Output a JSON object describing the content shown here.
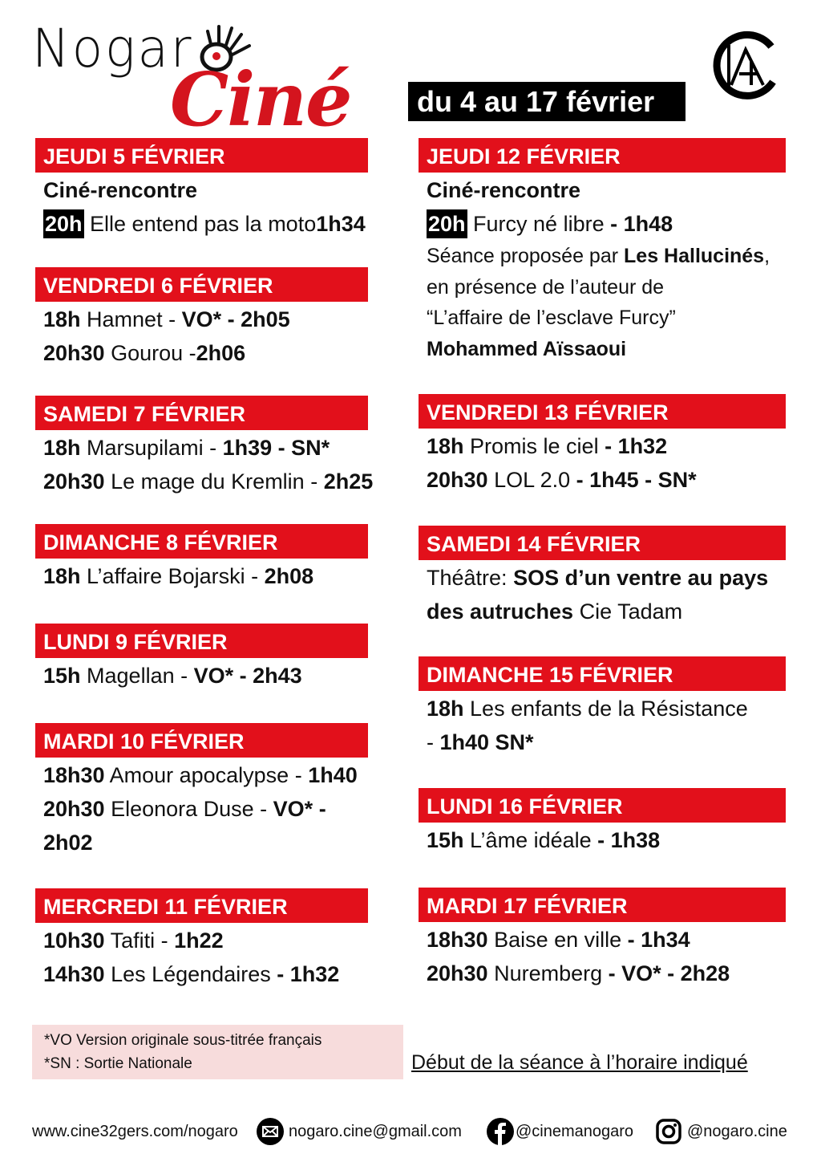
{
  "header": {
    "logo_text_1": "Nogaro",
    "logo_text_2": "Ciné",
    "partner_logo": "CA",
    "period": "du 4 au 17 février"
  },
  "colors": {
    "accent": "#e2101b",
    "legend_bg": "#f7dcdc"
  },
  "left": [
    {
      "header": "JEUDI 5 FÉVRIER",
      "lines": [
        [
          {
            "t": "Ciné-rencontre",
            "s": "b"
          }
        ],
        [
          {
            "t": "20h",
            "s": "badge"
          },
          {
            "t": " Elle entend pas la moto"
          },
          {
            "t": "1h34",
            "s": "b"
          }
        ]
      ]
    },
    {
      "header": "VENDREDI 6 FÉVRIER",
      "lines": [
        [
          {
            "t": "18h",
            "s": "b"
          },
          {
            "t": " Hamnet - "
          },
          {
            "t": "VO* - 2h05",
            "s": "b"
          }
        ],
        [
          {
            "t": "20h30",
            "s": "b"
          },
          {
            "t": " Gourou -"
          },
          {
            "t": "2h06",
            "s": "b"
          }
        ]
      ]
    },
    {
      "header": "SAMEDI 7 FÉVRIER",
      "lines": [
        [
          {
            "t": "18h",
            "s": "b"
          },
          {
            "t": " Marsupilami - "
          },
          {
            "t": "1h39 - SN*",
            "s": "b"
          }
        ],
        [
          {
            "t": "20h30",
            "s": "b"
          },
          {
            "t": " Le mage du Kremlin - "
          },
          {
            "t": "2h25",
            "s": "b"
          }
        ]
      ]
    },
    {
      "header": "DIMANCHE 8 FÉVRIER",
      "lines": [
        [
          {
            "t": "18h",
            "s": "b"
          },
          {
            "t": " L’affaire Bojarski - "
          },
          {
            "t": "2h08",
            "s": "b"
          }
        ]
      ]
    },
    {
      "header": "LUNDI 9 FÉVRIER",
      "lines": [
        [
          {
            "t": "15h",
            "s": "b"
          },
          {
            "t": " Magellan - "
          },
          {
            "t": "VO* - 2h43",
            "s": "b"
          }
        ]
      ]
    },
    {
      "header": "MARDI 10 FÉVRIER",
      "lines": [
        [
          {
            "t": "18h30",
            "s": "b"
          },
          {
            "t": " Amour apocalypse - "
          },
          {
            "t": "1h40",
            "s": "b"
          }
        ],
        [
          {
            "t": "20h30",
            "s": "b"
          },
          {
            "t": " Eleonora Duse - "
          },
          {
            "t": "VO* -",
            "s": "b"
          }
        ],
        [
          {
            "t": "2h02",
            "s": "b"
          }
        ]
      ]
    },
    {
      "header": "MERCREDI 11 FÉVRIER",
      "lines": [
        [
          {
            "t": "10h30",
            "s": "b"
          },
          {
            "t": " Tafiti - "
          },
          {
            "t": "1h22",
            "s": "b"
          }
        ],
        [
          {
            "t": "14h30",
            "s": "b"
          },
          {
            "t": " Les Légendaires "
          },
          {
            "t": "- 1h32",
            "s": "b"
          }
        ]
      ]
    }
  ],
  "right": [
    {
      "header": "JEUDI 12 FÉVRIER",
      "lines": [
        [
          {
            "t": "Ciné-rencontre",
            "s": "b"
          }
        ],
        [
          {
            "t": "20h",
            "s": "badge"
          },
          {
            "t": " Furcy né libre "
          },
          {
            "t": "- 1h48",
            "s": "b"
          }
        ]
      ],
      "small_lines": [
        [
          {
            "t": "Séance proposée par "
          },
          {
            "t": "Les Hallucinés",
            "s": "b"
          },
          {
            "t": ","
          }
        ],
        [
          {
            "t": "en présence de l’auteur de"
          }
        ],
        [
          {
            "t": "“L’affaire de l’esclave Furcy”"
          }
        ],
        [
          {
            "t": "Mohammed Aïssaoui",
            "s": "b"
          }
        ]
      ]
    },
    {
      "header": "VENDREDI 13 FÉVRIER",
      "lines": [
        [
          {
            "t": "18h",
            "s": "b"
          },
          {
            "t": " Promis le ciel "
          },
          {
            "t": "- 1h32",
            "s": "b"
          }
        ],
        [
          {
            "t": "20h30",
            "s": "b"
          },
          {
            "t": " LOL 2.0 "
          },
          {
            "t": "- 1h45 - SN*",
            "s": "b"
          }
        ]
      ]
    },
    {
      "header": "SAMEDI 14 FÉVRIER",
      "lines": [
        [
          {
            "t": "Théâtre: "
          },
          {
            "t": "SOS d’un ventre au pays",
            "s": "b"
          }
        ],
        [
          {
            "t": "des autruches",
            "s": "b"
          },
          {
            "t": " Cie Tadam"
          }
        ]
      ]
    },
    {
      "header": "DIMANCHE 15 FÉVRIER",
      "lines": [
        [
          {
            "t": "18h",
            "s": "b"
          },
          {
            "t": " Les enfants de la Résistance"
          }
        ],
        [
          {
            "t": "- "
          },
          {
            "t": "1h40 SN*",
            "s": "b"
          }
        ]
      ]
    },
    {
      "header": "LUNDI 16 FÉVRIER",
      "lines": [
        [
          {
            "t": "15h",
            "s": "b"
          },
          {
            "t": " L’âme idéale "
          },
          {
            "t": "- 1h38",
            "s": "b"
          }
        ]
      ]
    },
    {
      "header": "MARDI 17 FÉVRIER",
      "lines": [
        [
          {
            "t": "18h30",
            "s": "b"
          },
          {
            "t": " Baise en ville "
          },
          {
            "t": "- 1h34",
            "s": "b"
          }
        ],
        [
          {
            "t": "20h30",
            "s": "b"
          },
          {
            "t": " Nuremberg "
          },
          {
            "t": "- VO* - 2h28",
            "s": "b"
          }
        ]
      ]
    }
  ],
  "legend": {
    "vo": "*VO Version originale sous-titrée français",
    "sn": "*SN : Sortie Nationale"
  },
  "note": "Début de la séance à l’horaire indiqué",
  "footer": {
    "website": "www.cine32gers.com/nogaro",
    "email": "nogaro.cine@gmail.com",
    "facebook": "@cinemanogaro",
    "instagram": "@nogaro.cine"
  }
}
